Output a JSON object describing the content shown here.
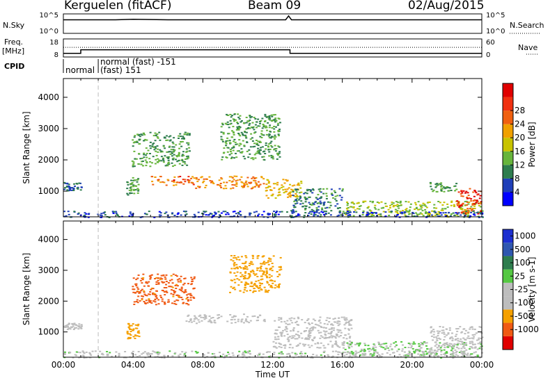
{
  "header": {
    "station": "Kerguelen (fitACF)",
    "beam": "Beam 09",
    "date": "02/Aug/2015"
  },
  "labels": {
    "nsky": "N.Sky",
    "nsearch": "N.Search",
    "freq": "Freq.",
    "mhz": "[MHz]",
    "nave": "Nave",
    "cpid": "CPID",
    "xlabel": "Time UT",
    "cpid_seg1": "normal",
    "cpid_seg2a": "normal (fast) -151",
    "cpid_seg2b": "(fast) 151"
  },
  "colors": {
    "power": [
      "#0000ff",
      "#1f3fb8",
      "#2e7d4e",
      "#67b53c",
      "#c8c300",
      "#f0a000",
      "#f06010",
      "#f03010",
      "#e00000"
    ],
    "velocity": [
      "#e00000",
      "#f05a14",
      "#f5a000",
      "#bdbdbd",
      "#bdbdbd",
      "#55c842",
      "#2e7d4e",
      "#2f57b0",
      "#1c2fd0"
    ],
    "text": "#000000"
  },
  "chart_data": [
    {
      "type": "line",
      "panel": "N.Sky / N.Search",
      "ylabel": "N.Sky",
      "y2label": "N.Search",
      "yticks": [
        "10^5",
        "10^0"
      ],
      "y2ticks": [
        "10^5",
        "10^0"
      ],
      "series": [
        {
          "x": [
            "00:00",
            "03:00",
            "04:00",
            "06:00",
            "12:00",
            "12:45",
            "12:55",
            "13:05",
            "24:00"
          ],
          "y": [
            3000,
            3000,
            4000,
            3000,
            3000,
            3000,
            30000,
            3000,
            3000
          ]
        }
      ]
    },
    {
      "type": "line",
      "panel": "Frequency / Nave",
      "ylabel": "Freq. [MHz]",
      "y2label": "Nave",
      "yticks": [
        18,
        8
      ],
      "y2ticks": [
        60,
        0
      ],
      "series": [
        {
          "x": [
            "00:00",
            "01:00",
            "01:00",
            "13:00",
            "13:00",
            "24:00"
          ],
          "y": [
            10,
            10,
            12,
            12,
            10,
            10
          ]
        },
        {
          "x": [
            "00:00",
            "24:00"
          ],
          "y": [
            32,
            32
          ],
          "style": "dotted"
        }
      ]
    },
    {
      "type": "table",
      "panel": "CPID",
      "segments": [
        {
          "start": "00:00",
          "end": "02:00",
          "label": "normal"
        },
        {
          "start": "02:00",
          "end": "24:00",
          "label": "normal (fast) -151 / (fast) 151"
        }
      ]
    },
    {
      "type": "heatmap",
      "panel": "Power",
      "xlabel": "",
      "ylabel": "Slant Range [km]",
      "xlim": [
        "00:00",
        "24:00"
      ],
      "ylim": [
        180,
        4600
      ],
      "yticks": [
        1000,
        2000,
        3000,
        4000
      ],
      "colorbar": {
        "label": "Power [dB]",
        "ticks": [
          4,
          8,
          12,
          16,
          20,
          24,
          28
        ],
        "range": [
          0,
          30
        ]
      },
      "regions": [
        {
          "t0": 3.6,
          "t1": 4.3,
          "r0": 900,
          "r1": 1450,
          "value": 12
        },
        {
          "t0": 3.9,
          "t1": 7.2,
          "r0": 1800,
          "r1": 2900,
          "value": 12
        },
        {
          "t0": 5.0,
          "t1": 7.5,
          "r0": 1200,
          "r1": 1500,
          "value": 26
        },
        {
          "t0": 7.5,
          "t1": 11.5,
          "r0": 1100,
          "r1": 1500,
          "value": 24
        },
        {
          "t0": 9.0,
          "t1": 12.4,
          "r0": 2000,
          "r1": 3500,
          "value": 12
        },
        {
          "t0": 11.5,
          "t1": 13.6,
          "r0": 800,
          "r1": 1400,
          "value": 20
        },
        {
          "t0": 13.0,
          "t1": 16.0,
          "r0": 350,
          "r1": 1100,
          "value": 10
        },
        {
          "t0": 16.0,
          "t1": 24.0,
          "r0": 200,
          "r1": 700,
          "value": 16
        },
        {
          "t0": 22.5,
          "t1": 24.0,
          "r0": 300,
          "r1": 1100,
          "value": 28
        },
        {
          "t0": 0.0,
          "t1": 24.0,
          "r0": 180,
          "r1": 380,
          "value": 6
        },
        {
          "t0": 0.0,
          "t1": 1.0,
          "r0": 1000,
          "r1": 1300,
          "value": 8
        },
        {
          "t0": 21.0,
          "t1": 22.5,
          "r0": 1000,
          "r1": 1300,
          "value": 12
        }
      ]
    },
    {
      "type": "heatmap",
      "panel": "Velocity",
      "xlabel": "Time UT",
      "ylabel": "Slant Range [km]",
      "xlim": [
        "00:00",
        "24:00"
      ],
      "ylim": [
        180,
        4600
      ],
      "xticks": [
        "00:00",
        "04:00",
        "08:00",
        "12:00",
        "16:00",
        "20:00",
        "00:00"
      ],
      "yticks": [
        1000,
        2000,
        3000,
        4000
      ],
      "colorbar": {
        "label": "Velocity [m s-1]",
        "ticks": [
          -1000,
          -500,
          -100,
          -25,
          25,
          100,
          500,
          1000
        ]
      },
      "regions": [
        {
          "t0": 3.9,
          "t1": 7.5,
          "r0": 1900,
          "r1": 2900,
          "value": -400
        },
        {
          "t0": 7.0,
          "t1": 11.5,
          "r0": 1300,
          "r1": 1600,
          "value": 0
        },
        {
          "t0": 9.5,
          "t1": 12.5,
          "r0": 2300,
          "r1": 3500,
          "value": -100
        },
        {
          "t0": 3.6,
          "t1": 4.3,
          "r0": 800,
          "r1": 1300,
          "value": -150
        },
        {
          "t0": 12.0,
          "t1": 16.5,
          "r0": 500,
          "r1": 1500,
          "value": 0
        },
        {
          "t0": 16.0,
          "t1": 24.0,
          "r0": 250,
          "r1": 700,
          "value": 60
        },
        {
          "t0": 0.0,
          "t1": 24.0,
          "r0": 180,
          "r1": 400,
          "value": 40
        },
        {
          "t0": 0.0,
          "t1": 1.0,
          "r0": 1100,
          "r1": 1300,
          "value": 0
        },
        {
          "t0": 21.0,
          "t1": 24.0,
          "r0": 500,
          "r1": 1200,
          "value": 0
        }
      ]
    }
  ]
}
